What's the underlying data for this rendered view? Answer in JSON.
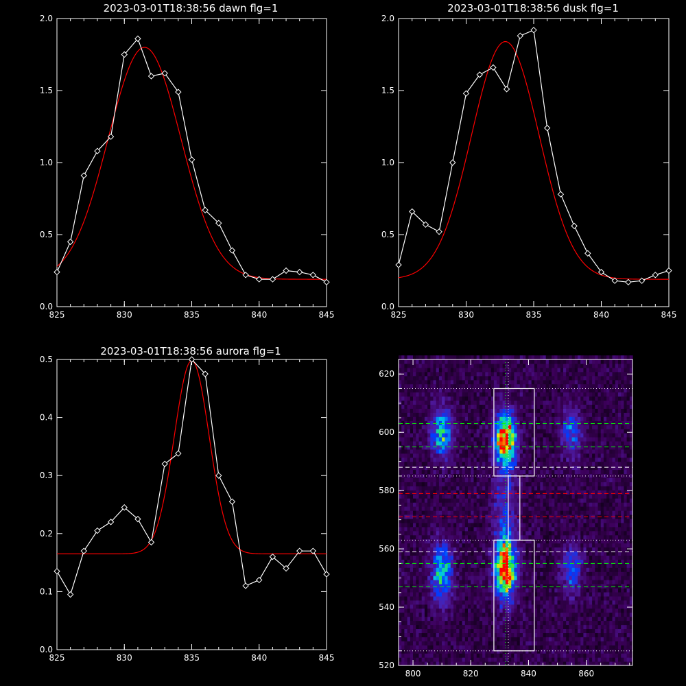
{
  "chart_data": [
    {
      "type": "line",
      "title": "2023-03-01T18:38:56 dawn flg=1",
      "xlim": [
        825,
        845
      ],
      "ylim": [
        0,
        2.0
      ],
      "xticks": [
        "825",
        "830",
        "835",
        "840",
        "845"
      ],
      "yticks": [
        "0.0",
        "0.5",
        "1.0",
        "1.5",
        "2.0"
      ],
      "x": [
        825,
        826,
        827,
        828,
        829,
        830,
        831,
        832,
        833,
        834,
        835,
        836,
        837,
        838,
        839,
        840,
        841,
        842,
        843,
        844,
        845
      ],
      "series": [
        {
          "values": [
            0.24,
            0.45,
            0.91,
            1.08,
            1.18,
            1.75,
            1.86,
            1.6,
            1.62,
            1.49,
            1.02,
            0.67,
            0.58,
            0.39,
            0.22,
            0.19,
            0.19,
            0.25,
            0.24,
            0.22,
            0.17
          ],
          "color": "#ffffff",
          "marker": "diamond"
        },
        {
          "gauss": {
            "amp": 1.61,
            "center": 831.5,
            "sigma": 2.7,
            "base": 0.19
          },
          "color": "#ff0000"
        }
      ]
    },
    {
      "type": "line",
      "title": "2023-03-01T18:38:56 dusk flg=1",
      "xlim": [
        825,
        845
      ],
      "ylim": [
        0,
        2.0
      ],
      "xticks": [
        "825",
        "830",
        "835",
        "840",
        "845"
      ],
      "yticks": [
        "0.0",
        "0.5",
        "1.0",
        "1.5",
        "2.0"
      ],
      "x": [
        825,
        826,
        827,
        828,
        829,
        830,
        831,
        832,
        833,
        834,
        835,
        836,
        837,
        838,
        839,
        840,
        841,
        842,
        843,
        844,
        845
      ],
      "series": [
        {
          "values": [
            0.29,
            0.66,
            0.57,
            0.52,
            1.0,
            1.48,
            1.61,
            1.66,
            1.51,
            1.88,
            1.92,
            1.24,
            0.78,
            0.56,
            0.37,
            0.24,
            0.18,
            0.17,
            0.18,
            0.22,
            0.25
          ],
          "color": "#ffffff",
          "marker": "diamond"
        },
        {
          "gauss": {
            "amp": 1.65,
            "center": 832.9,
            "sigma": 2.5,
            "base": 0.19
          },
          "color": "#ff0000"
        }
      ]
    },
    {
      "type": "line",
      "title": "2023-03-01T18:38:56 aurora flg=1",
      "xlim": [
        825,
        845
      ],
      "ylim": [
        0,
        0.5
      ],
      "xticks": [
        "825",
        "830",
        "835",
        "840",
        "845"
      ],
      "yticks": [
        "0.0",
        "0.1",
        "0.2",
        "0.3",
        "0.4",
        "0.5"
      ],
      "x": [
        825,
        826,
        827,
        828,
        829,
        830,
        831,
        832,
        833,
        834,
        835,
        836,
        837,
        838,
        839,
        840,
        841,
        842,
        843,
        844,
        845
      ],
      "series": [
        {
          "values": [
            0.135,
            0.095,
            0.17,
            0.205,
            0.22,
            0.245,
            0.225,
            0.185,
            0.32,
            0.338,
            0.5,
            0.475,
            0.3,
            0.255,
            0.11,
            0.12,
            0.16,
            0.14,
            0.17,
            0.17,
            0.13
          ],
          "color": "#ffffff",
          "marker": "diamond"
        },
        {
          "gauss": {
            "amp": 0.333,
            "center": 835.0,
            "sigma": 1.3,
            "base": 0.165
          },
          "color": "#ff0000"
        }
      ]
    },
    {
      "type": "heatmap",
      "title": "",
      "xlim": [
        795,
        876
      ],
      "ylim": [
        520,
        625
      ],
      "xticks": [
        "800",
        "820",
        "840",
        "860"
      ],
      "yticks": [
        "520",
        "540",
        "560",
        "580",
        "600",
        "620"
      ],
      "blobs": [
        {
          "x": 832,
          "y": 598,
          "sx": 2.5,
          "sy": 6,
          "amp": 0.95
        },
        {
          "x": 832,
          "y": 553,
          "sx": 2.5,
          "sy": 7,
          "amp": 0.95
        },
        {
          "x": 810,
          "y": 600,
          "sx": 2.5,
          "sy": 6,
          "amp": 0.55
        },
        {
          "x": 810,
          "y": 552,
          "sx": 2.5,
          "sy": 7,
          "amp": 0.55
        },
        {
          "x": 855,
          "y": 600,
          "sx": 2.5,
          "sy": 6,
          "amp": 0.35
        },
        {
          "x": 855,
          "y": 553,
          "sx": 2.5,
          "sy": 6,
          "amp": 0.35
        },
        {
          "x": 832,
          "y": 575,
          "sx": 3,
          "sy": 12,
          "amp": 0.25
        }
      ],
      "boxes": [
        {
          "x0": 828,
          "x1": 842,
          "y0": 585,
          "y1": 615
        },
        {
          "x0": 833,
          "x1": 837,
          "y0": 563,
          "y1": 585
        },
        {
          "x0": 828,
          "x1": 842,
          "y0": 525,
          "y1": 563
        }
      ],
      "vlines": [
        {
          "x": 832,
          "color": "#00ff00"
        },
        {
          "x": 833,
          "color": "#ffffff"
        }
      ],
      "hlines": [
        {
          "y": 615,
          "color": "#ffffff",
          "style": "dotted"
        },
        {
          "y": 603,
          "color": "#00ff00",
          "style": "dashed"
        },
        {
          "y": 595,
          "color": "#00ff00",
          "style": "dashed"
        },
        {
          "y": 588,
          "color": "#ffffff",
          "style": "dashed"
        },
        {
          "y": 585,
          "color": "#ffffff",
          "style": "dotted"
        },
        {
          "y": 579,
          "color": "#ff0000",
          "style": "dashed"
        },
        {
          "y": 571,
          "color": "#ff0000",
          "style": "dashed"
        },
        {
          "y": 563,
          "color": "#ffffff",
          "style": "dotted"
        },
        {
          "y": 559,
          "color": "#ffffff",
          "style": "dashed"
        },
        {
          "y": 555,
          "color": "#00ff00",
          "style": "dashed"
        },
        {
          "y": 547,
          "color": "#00ff00",
          "style": "dashed"
        },
        {
          "y": 525,
          "color": "#ffffff",
          "style": "dotted"
        }
      ]
    }
  ]
}
